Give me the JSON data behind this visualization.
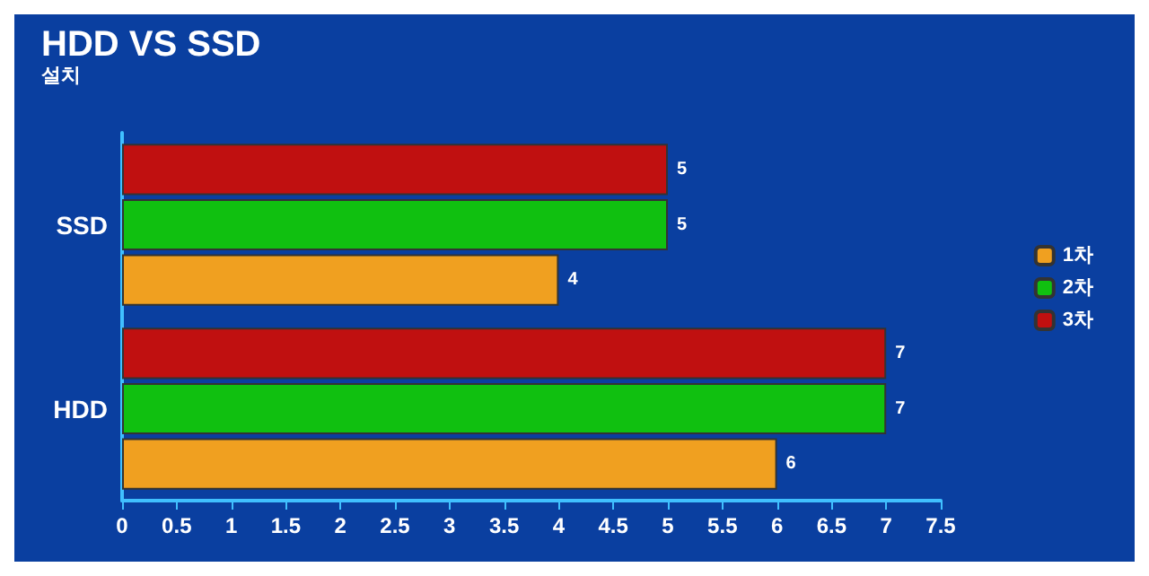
{
  "chart_data": {
    "type": "bar",
    "orientation": "horizontal",
    "title": "HDD VS SSD",
    "subtitle": "설치",
    "categories": [
      "SSD",
      "HDD"
    ],
    "series": [
      {
        "name": "1차",
        "color": "#f0a020",
        "values": [
          4,
          6
        ]
      },
      {
        "name": "2차",
        "color": "#10c010",
        "values": [
          5,
          7
        ]
      },
      {
        "name": "3차",
        "color": "#c01010",
        "values": [
          5,
          7
        ]
      }
    ],
    "xlim": [
      0,
      7.5
    ],
    "xticks": [
      0,
      0.5,
      1,
      1.5,
      2,
      2.5,
      3,
      3.5,
      4,
      4.5,
      5,
      5.5,
      6,
      6.5,
      7,
      7.5
    ],
    "data_labels": true,
    "legend": "right",
    "grid": false
  }
}
